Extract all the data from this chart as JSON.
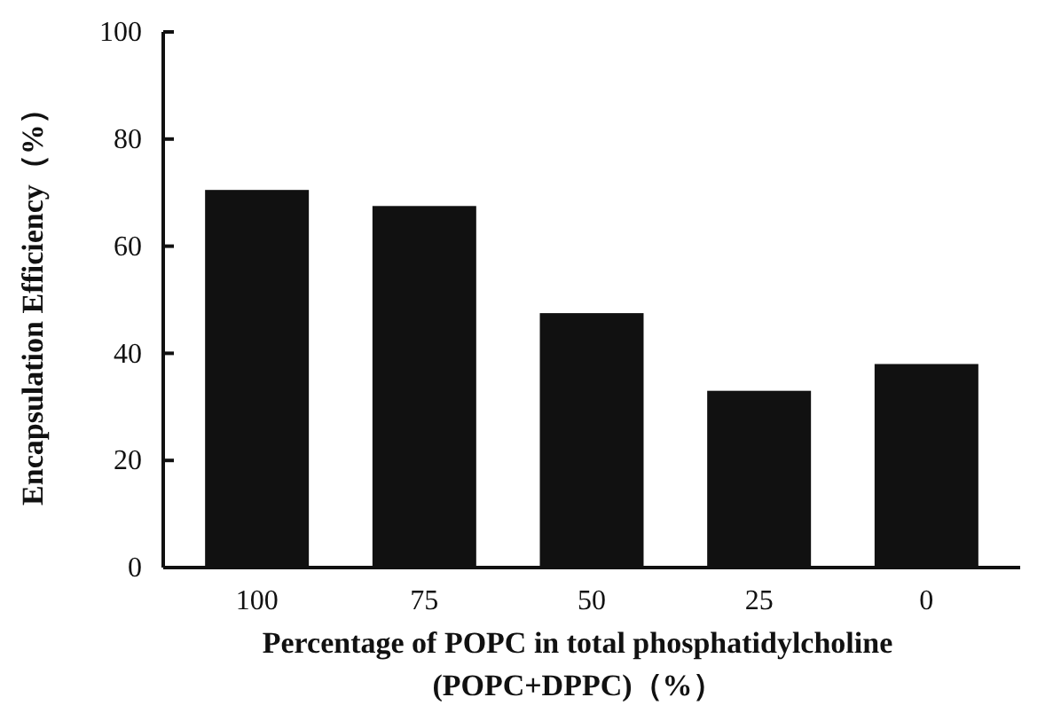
{
  "chart_data": {
    "type": "bar",
    "xlabel": "Percentage of POPC in total phosphatidylcholine\n(POPC+DPPC)（%）",
    "ylabel": "Encapsulation Efficiency（%）",
    "categories": [
      "100",
      "75",
      "50",
      "25",
      "0"
    ],
    "values": [
      70.5,
      67.5,
      47.5,
      33,
      38
    ],
    "color": "#111111",
    "ylim": [
      0,
      100
    ],
    "yticks": [
      0,
      20,
      40,
      60,
      80,
      100
    ],
    "grid": false
  }
}
